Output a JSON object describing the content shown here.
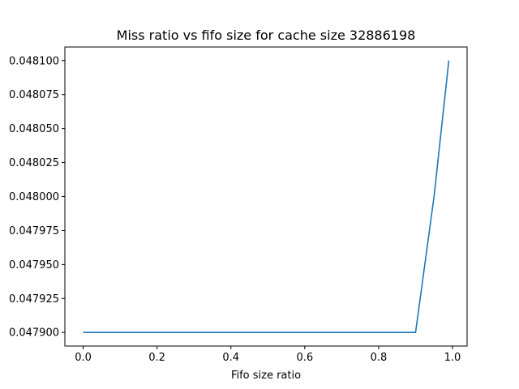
{
  "chart_data": {
    "type": "line",
    "title": "Miss ratio vs fifo size for cache size 32886198",
    "xlabel": "Fifo size ratio",
    "ylabel": "",
    "xlim": [
      -0.0495,
      1.0395
    ],
    "ylim": [
      0.04789,
      0.04811
    ],
    "x_ticks": [
      0.0,
      0.2,
      0.4,
      0.6,
      0.8,
      1.0
    ],
    "x_tick_labels": [
      "0.0",
      "0.2",
      "0.4",
      "0.6",
      "0.8",
      "1.0"
    ],
    "y_ticks": [
      0.0479,
      0.047925,
      0.04795,
      0.047975,
      0.048,
      0.048025,
      0.04805,
      0.048075,
      0.0481
    ],
    "y_tick_labels": [
      "0.047900",
      "0.047925",
      "0.047950",
      "0.047975",
      "0.048000",
      "0.048025",
      "0.048050",
      "0.048075",
      "0.048100"
    ],
    "grid": false,
    "legend": "none",
    "series": [
      {
        "color": "#1f77b4",
        "x": [
          0.0,
          0.1,
          0.2,
          0.3,
          0.4,
          0.5,
          0.6,
          0.7,
          0.8,
          0.9,
          0.95,
          0.99
        ],
        "y": [
          0.0479,
          0.0479,
          0.0479,
          0.0479,
          0.0479,
          0.0479,
          0.0479,
          0.0479,
          0.0479,
          0.0479,
          0.048,
          0.0481
        ]
      }
    ]
  }
}
